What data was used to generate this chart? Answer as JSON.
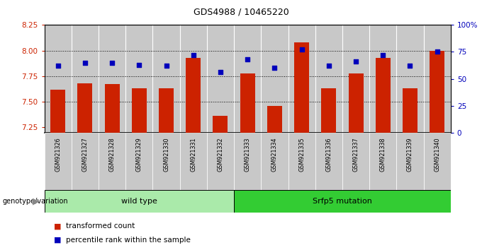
{
  "title": "GDS4988 / 10465220",
  "samples": [
    "GSM921326",
    "GSM921327",
    "GSM921328",
    "GSM921329",
    "GSM921330",
    "GSM921331",
    "GSM921332",
    "GSM921333",
    "GSM921334",
    "GSM921335",
    "GSM921336",
    "GSM921337",
    "GSM921338",
    "GSM921339",
    "GSM921340"
  ],
  "red_values": [
    7.62,
    7.68,
    7.67,
    7.63,
    7.63,
    7.93,
    7.36,
    7.78,
    7.46,
    8.08,
    7.63,
    7.78,
    7.93,
    7.63,
    8.0
  ],
  "blue_percentiles": [
    62,
    65,
    65,
    63,
    62,
    72,
    56,
    68,
    60,
    77,
    62,
    66,
    72,
    62,
    75
  ],
  "ylim_left": [
    7.2,
    8.25
  ],
  "ylim_right": [
    0,
    100
  ],
  "yticks_left": [
    7.25,
    7.5,
    7.75,
    8.0,
    8.25
  ],
  "yticks_right": [
    0,
    25,
    50,
    75,
    100
  ],
  "grid_values": [
    7.5,
    7.75,
    8.0
  ],
  "groups": [
    {
      "label": "wild type",
      "start": 0,
      "end": 7,
      "color": "#AAEAAA"
    },
    {
      "label": "Srfp5 mutation",
      "start": 7,
      "end": 15,
      "color": "#33CC33"
    }
  ],
  "bar_color": "#CC2200",
  "dot_color": "#0000BB",
  "bg_color": "#C8C8C8",
  "legend_items": [
    {
      "label": "transformed count",
      "color": "#CC2200"
    },
    {
      "label": "percentile rank within the sample",
      "color": "#0000BB"
    }
  ],
  "ylabel_left_color": "#CC2200",
  "ylabel_right_color": "#0000BB",
  "genotype_label": "genotype/variation"
}
